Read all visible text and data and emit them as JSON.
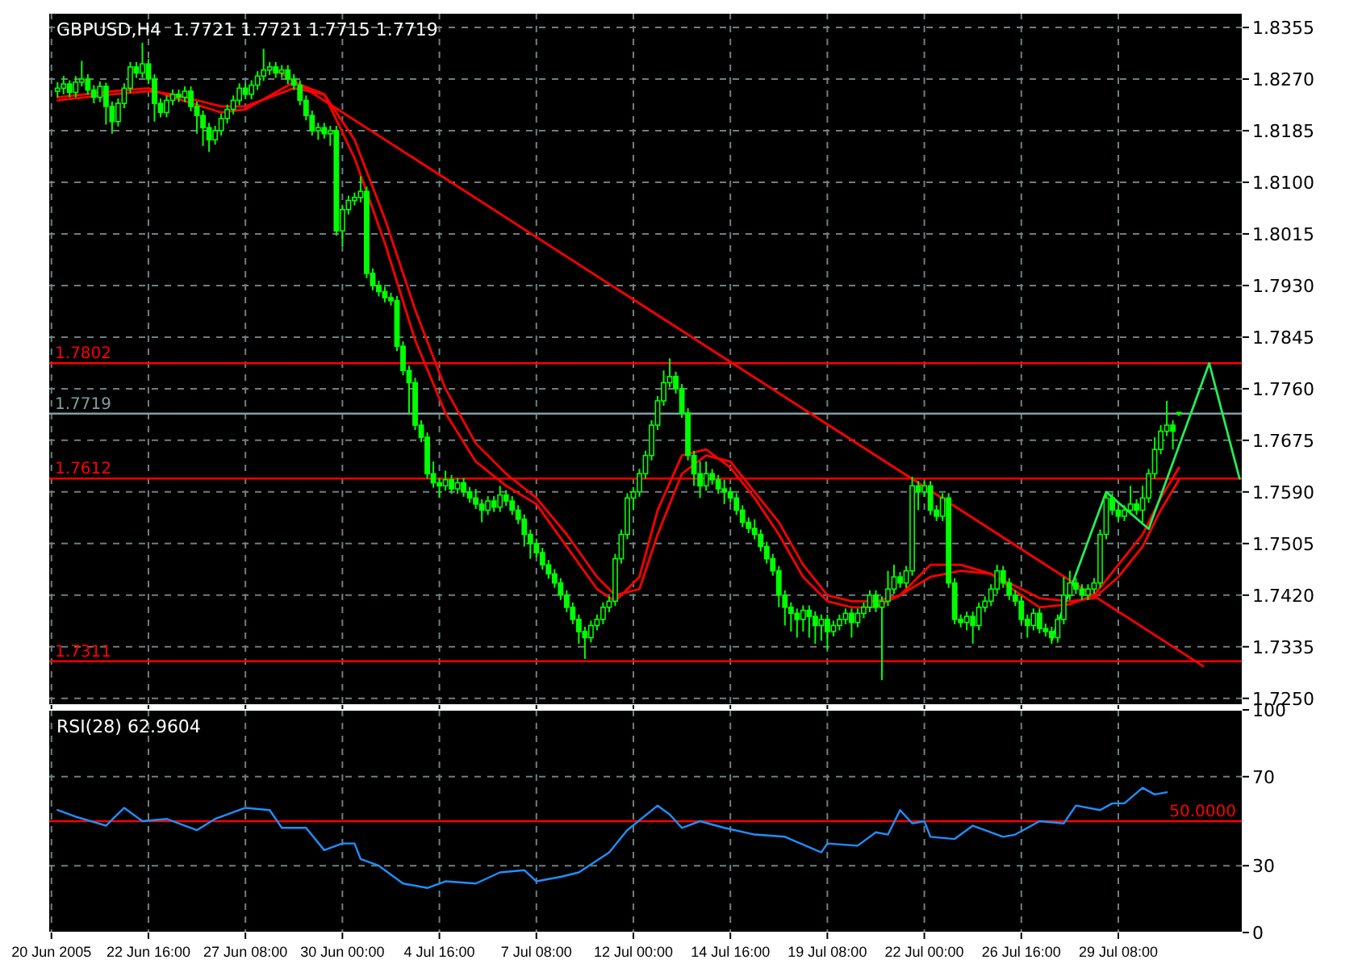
{
  "chart_data": [
    {
      "type": "candlestick",
      "title": "GBPUSD,H4  1.7721 1.7721 1.7715 1.7719",
      "color": "#00ff00",
      "ohlc": [
        null,
        [
          1.825,
          1.8265,
          1.824,
          1.8255
        ],
        [
          1.8255,
          1.8275,
          1.8245,
          1.8262
        ],
        [
          1.8262,
          1.8268,
          1.824,
          1.8248
        ],
        [
          1.8248,
          1.8275,
          1.824,
          1.8265
        ],
        [
          1.8265,
          1.83,
          1.8258,
          1.827
        ],
        [
          1.827,
          1.8278,
          1.8244,
          1.8252
        ],
        [
          1.8252,
          1.826,
          1.823,
          1.824
        ],
        [
          1.824,
          1.8266,
          1.8232,
          1.8258
        ],
        [
          1.8258,
          1.8264,
          1.8195,
          1.8225
        ],
        [
          1.8225,
          1.8233,
          1.818,
          1.82
        ],
        [
          1.82,
          1.8238,
          1.8192,
          1.823
        ],
        [
          1.823,
          1.8263,
          1.8222,
          1.8255
        ],
        [
          1.8255,
          1.8298,
          1.8247,
          1.829
        ],
        [
          1.829,
          1.8298,
          1.8272,
          1.828
        ],
        [
          1.828,
          1.833,
          1.8272,
          1.8295
        ],
        [
          1.8295,
          1.8303,
          1.8262,
          1.827
        ],
        [
          1.827,
          1.8278,
          1.82,
          1.823
        ],
        [
          1.823,
          1.8238,
          1.8207,
          1.8215
        ],
        [
          1.8215,
          1.8243,
          1.8207,
          1.8235
        ],
        [
          1.8235,
          1.8253,
          1.8227,
          1.8245
        ],
        [
          1.8245,
          1.8253,
          1.8232,
          1.824
        ],
        [
          1.824,
          1.8258,
          1.8232,
          1.825
        ],
        [
          1.825,
          1.8258,
          1.8217,
          1.8225
        ],
        [
          1.8225,
          1.8233,
          1.818,
          1.821
        ],
        [
          1.821,
          1.8218,
          1.816,
          1.819
        ],
        [
          1.819,
          1.8198,
          1.815,
          1.817
        ],
        [
          1.817,
          1.8193,
          1.8162,
          1.8185
        ],
        [
          1.8185,
          1.8213,
          1.8177,
          1.8205
        ],
        [
          1.8205,
          1.8228,
          1.8197,
          1.822
        ],
        [
          1.822,
          1.8243,
          1.8212,
          1.8235
        ],
        [
          1.8235,
          1.8263,
          1.8227,
          1.8255
        ],
        [
          1.8255,
          1.8263,
          1.8237,
          1.8245
        ],
        [
          1.8245,
          1.8268,
          1.8237,
          1.826
        ],
        [
          1.826,
          1.8283,
          1.8252,
          1.8275
        ],
        [
          1.8275,
          1.832,
          1.8267,
          1.8285
        ],
        [
          1.8285,
          1.8298,
          1.8277,
          1.829
        ],
        [
          1.829,
          1.8298,
          1.8272,
          1.828
        ],
        [
          1.828,
          1.8293,
          1.8272,
          1.8285
        ],
        [
          1.8285,
          1.8293,
          1.8262,
          1.827
        ],
        [
          1.827,
          1.8278,
          1.8252,
          1.826
        ],
        [
          1.826,
          1.8268,
          1.8227,
          1.8235
        ],
        [
          1.8235,
          1.8243,
          1.8202,
          1.821
        ],
        [
          1.821,
          1.8218,
          1.8177,
          1.8185
        ],
        [
          1.8185,
          1.8198,
          1.817,
          1.819
        ],
        [
          1.819,
          1.8198,
          1.8172,
          1.818
        ],
        [
          1.818,
          1.8193,
          1.816,
          1.8185
        ],
        [
          1.8185,
          1.8193,
          1.8012,
          1.802
        ],
        [
          1.802,
          1.8063,
          1.7995,
          1.8055
        ],
        [
          1.8055,
          1.8078,
          1.8047,
          1.807
        ],
        [
          1.807,
          1.8083,
          1.8062,
          1.8075
        ],
        [
          1.8075,
          1.811,
          1.8067,
          1.8085
        ],
        [
          1.8085,
          1.8093,
          1.7942,
          1.795
        ],
        [
          1.795,
          1.7958,
          1.7922,
          1.793
        ],
        [
          1.793,
          1.7938,
          1.7912,
          1.792
        ],
        [
          1.792,
          1.7928,
          1.7902,
          1.791
        ],
        [
          1.791,
          1.7918,
          1.7897,
          1.7905
        ],
        [
          1.7905,
          1.7913,
          1.7822,
          1.783
        ],
        [
          1.783,
          1.7838,
          1.7782,
          1.779
        ],
        [
          1.779,
          1.7798,
          1.772,
          1.777
        ],
        [
          1.777,
          1.7778,
          1.7692,
          1.77
        ],
        [
          1.77,
          1.7708,
          1.7672,
          1.768
        ],
        [
          1.768,
          1.7688,
          1.7612,
          1.762
        ],
        [
          1.762,
          1.764,
          1.7597,
          1.7605
        ],
        [
          1.7605,
          1.7613,
          1.758,
          1.76
        ],
        [
          1.76,
          1.7625,
          1.7592,
          1.761
        ],
        [
          1.761,
          1.7618,
          1.7587,
          1.7595
        ],
        [
          1.7595,
          1.7613,
          1.7587,
          1.7605
        ],
        [
          1.7605,
          1.7613,
          1.7582,
          1.759
        ],
        [
          1.759,
          1.7598,
          1.7572,
          1.758
        ],
        [
          1.758,
          1.7595,
          1.7562,
          1.757
        ],
        [
          1.757,
          1.7578,
          1.754,
          1.756
        ],
        [
          1.756,
          1.7583,
          1.7552,
          1.7575
        ],
        [
          1.7575,
          1.7583,
          1.7557,
          1.7565
        ],
        [
          1.7565,
          1.76,
          1.7557,
          1.7585
        ],
        [
          1.7585,
          1.7593,
          1.7567,
          1.7575
        ],
        [
          1.7575,
          1.7583,
          1.7552,
          1.756
        ],
        [
          1.756,
          1.7568,
          1.7537,
          1.7545
        ],
        [
          1.7545,
          1.7553,
          1.75,
          1.752
        ],
        [
          1.752,
          1.7528,
          1.748,
          1.7505
        ],
        [
          1.7505,
          1.7513,
          1.7482,
          1.749
        ],
        [
          1.749,
          1.7498,
          1.7462,
          1.747
        ],
        [
          1.747,
          1.7478,
          1.7447,
          1.7455
        ],
        [
          1.7455,
          1.7463,
          1.7432,
          1.744
        ],
        [
          1.744,
          1.7448,
          1.7412,
          1.742
        ],
        [
          1.742,
          1.7428,
          1.7392,
          1.74
        ],
        [
          1.74,
          1.7408,
          1.7372,
          1.738
        ],
        [
          1.738,
          1.7388,
          1.734,
          1.736
        ],
        [
          1.736,
          1.7368,
          1.7315,
          1.735
        ],
        [
          1.735,
          1.7378,
          1.7342,
          1.737
        ],
        [
          1.737,
          1.7388,
          1.7362,
          1.738
        ],
        [
          1.738,
          1.7408,
          1.7372,
          1.74
        ],
        [
          1.74,
          1.7418,
          1.7392,
          1.741
        ],
        [
          1.741,
          1.7488,
          1.7402,
          1.748
        ],
        [
          1.748,
          1.7528,
          1.7472,
          1.752
        ],
        [
          1.752,
          1.7588,
          1.7512,
          1.758
        ],
        [
          1.758,
          1.7598,
          1.756,
          1.759
        ],
        [
          1.759,
          1.7628,
          1.7582,
          1.762
        ],
        [
          1.762,
          1.7658,
          1.7612,
          1.765
        ],
        [
          1.765,
          1.7708,
          1.7642,
          1.77
        ],
        [
          1.77,
          1.7748,
          1.7692,
          1.774
        ],
        [
          1.774,
          1.779,
          1.7732,
          1.777
        ],
        [
          1.777,
          1.781,
          1.7762,
          1.778
        ],
        [
          1.778,
          1.7788,
          1.7752,
          1.776
        ],
        [
          1.776,
          1.7768,
          1.7712,
          1.772
        ],
        [
          1.772,
          1.7728,
          1.7642,
          1.765
        ],
        [
          1.765,
          1.7658,
          1.76,
          1.762
        ],
        [
          1.762,
          1.764,
          1.758,
          1.76
        ],
        [
          1.76,
          1.764,
          1.7592,
          1.762
        ],
        [
          1.762,
          1.7628,
          1.7602,
          1.761
        ],
        [
          1.761,
          1.7618,
          1.7587,
          1.7595
        ],
        [
          1.7595,
          1.761,
          1.757,
          1.759
        ],
        [
          1.759,
          1.7598,
          1.7572,
          1.758
        ],
        [
          1.758,
          1.7588,
          1.7552,
          1.756
        ],
        [
          1.756,
          1.7568,
          1.7532,
          1.754
        ],
        [
          1.754,
          1.7548,
          1.7522,
          1.753
        ],
        [
          1.753,
          1.7545,
          1.7512,
          1.752
        ],
        [
          1.752,
          1.7528,
          1.7492,
          1.75
        ],
        [
          1.75,
          1.7508,
          1.7472,
          1.748
        ],
        [
          1.748,
          1.7488,
          1.7452,
          1.746
        ],
        [
          1.746,
          1.7468,
          1.74,
          1.742
        ],
        [
          1.742,
          1.7428,
          1.737,
          1.74
        ],
        [
          1.74,
          1.7408,
          1.736,
          1.739
        ],
        [
          1.739,
          1.7398,
          1.735,
          1.738
        ],
        [
          1.738,
          1.7403,
          1.736,
          1.7395
        ],
        [
          1.7395,
          1.7403,
          1.735,
          1.7385
        ],
        [
          1.7385,
          1.7393,
          1.734,
          1.737
        ],
        [
          1.737,
          1.7388,
          1.7345,
          1.738
        ],
        [
          1.738,
          1.7388,
          1.733,
          1.736
        ],
        [
          1.736,
          1.7378,
          1.7352,
          1.737
        ],
        [
          1.737,
          1.7388,
          1.7362,
          1.738
        ],
        [
          1.738,
          1.7398,
          1.7372,
          1.739
        ],
        [
          1.739,
          1.7398,
          1.735,
          1.7375
        ],
        [
          1.7375,
          1.7398,
          1.7367,
          1.739
        ],
        [
          1.739,
          1.7408,
          1.7382,
          1.74
        ],
        [
          1.74,
          1.7428,
          1.7392,
          1.742
        ],
        [
          1.742,
          1.7428,
          1.7392,
          1.74
        ],
        [
          1.74,
          1.7418,
          1.728,
          1.741
        ],
        [
          1.741,
          1.746,
          1.7402,
          1.743
        ],
        [
          1.743,
          1.747,
          1.7422,
          1.745
        ],
        [
          1.745,
          1.7458,
          1.7432,
          1.744
        ],
        [
          1.744,
          1.7468,
          1.7432,
          1.746
        ],
        [
          1.746,
          1.7615,
          1.7452,
          1.76
        ],
        [
          1.76,
          1.7608,
          1.756,
          1.759
        ],
        [
          1.759,
          1.7608,
          1.7582,
          1.76
        ],
        [
          1.76,
          1.7608,
          1.7552,
          1.756
        ],
        [
          1.756,
          1.7568,
          1.7542,
          1.755
        ],
        [
          1.755,
          1.7588,
          1.7542,
          1.758
        ],
        [
          1.758,
          1.7588,
          1.7432,
          1.744
        ],
        [
          1.744,
          1.7448,
          1.7372,
          1.738
        ],
        [
          1.738,
          1.7388,
          1.7367,
          1.7375
        ],
        [
          1.7375,
          1.7393,
          1.7362,
          1.7385
        ],
        [
          1.7385,
          1.7393,
          1.734,
          1.737
        ],
        [
          1.737,
          1.7408,
          1.7362,
          1.74
        ],
        [
          1.74,
          1.7418,
          1.7392,
          1.741
        ],
        [
          1.741,
          1.7438,
          1.7402,
          1.743
        ],
        [
          1.743,
          1.747,
          1.7422,
          1.746
        ],
        [
          1.746,
          1.7468,
          1.7432,
          1.744
        ],
        [
          1.744,
          1.7448,
          1.7412,
          1.742
        ],
        [
          1.742,
          1.7428,
          1.7402,
          1.741
        ],
        [
          1.741,
          1.7418,
          1.7372,
          1.738
        ],
        [
          1.738,
          1.7388,
          1.735,
          1.737
        ],
        [
          1.737,
          1.7398,
          1.7362,
          1.739
        ],
        [
          1.739,
          1.7398,
          1.7357,
          1.7365
        ],
        [
          1.7365,
          1.7373,
          1.7352,
          1.736
        ],
        [
          1.736,
          1.7368,
          1.734,
          1.735
        ],
        [
          1.735,
          1.7388,
          1.7342,
          1.738
        ],
        [
          1.738,
          1.745,
          1.7372,
          1.742
        ],
        [
          1.742,
          1.746,
          1.7412,
          1.744
        ],
        [
          1.744,
          1.7448,
          1.7422,
          1.743
        ],
        [
          1.743,
          1.7438,
          1.7412,
          1.742
        ],
        [
          1.742,
          1.7438,
          1.7412,
          1.743
        ],
        [
          1.743,
          1.7448,
          1.7422,
          1.744
        ],
        [
          1.744,
          1.7528,
          1.7432,
          1.752
        ],
        [
          1.752,
          1.7588,
          1.7512,
          1.758
        ],
        [
          1.758,
          1.7588,
          1.7552,
          1.756
        ],
        [
          1.756,
          1.7568,
          1.7542,
          1.755
        ],
        [
          1.755,
          1.7568,
          1.7542,
          1.756
        ],
        [
          1.756,
          1.76,
          1.7552,
          1.757
        ],
        [
          1.757,
          1.7578,
          1.7552,
          1.756
        ],
        [
          1.756,
          1.76,
          1.754,
          1.758
        ],
        [
          1.758,
          1.7628,
          1.7572,
          1.762
        ],
        [
          1.762,
          1.768,
          1.7612,
          1.766
        ],
        [
          1.766,
          1.77,
          1.7652,
          1.769
        ],
        [
          1.769,
          1.774,
          1.7682,
          1.77
        ],
        [
          1.77,
          1.7708,
          1.766,
          1.769
        ],
        [
          1.7721,
          1.7721,
          1.7715,
          1.7719
        ],
        null,
        null,
        null,
        null,
        null,
        null,
        null,
        null,
        null,
        null
      ],
      "series": [
        {
          "type": "line",
          "color": "#ff0000",
          "values": [
            null,
            1.824,
            null,
            null,
            null,
            null,
            null,
            null,
            null,
            null,
            1.825,
            null,
            null,
            null,
            null,
            null,
            1.8255,
            null,
            null,
            null,
            1.824,
            null,
            null,
            null,
            null,
            null,
            null,
            null,
            1.8215,
            null,
            null,
            null,
            1.822,
            null,
            null,
            null,
            null,
            null,
            null,
            null,
            1.8265,
            null,
            null,
            null,
            null,
            1.8245,
            null,
            null,
            null,
            null,
            1.814,
            null,
            null,
            null,
            null,
            1.8,
            null,
            null,
            null,
            null,
            1.784,
            null,
            null,
            null,
            null,
            1.772,
            null,
            null,
            null,
            null,
            1.764,
            null,
            null,
            null,
            null,
            1.76,
            null,
            null,
            null,
            null,
            1.757,
            null,
            null,
            null,
            null,
            1.75,
            null,
            null,
            null,
            null,
            1.743,
            null,
            null,
            1.741,
            null,
            null,
            null,
            1.745,
            null,
            null,
            1.756,
            null,
            null,
            null,
            1.765,
            null,
            null,
            null,
            1.766,
            null,
            null,
            null,
            1.763,
            null,
            null,
            null,
            1.758,
            null,
            null,
            null,
            1.752,
            null,
            null,
            null,
            1.745,
            null,
            null,
            null,
            1.741,
            null,
            null,
            null,
            1.74,
            null,
            null,
            null,
            1.74,
            null,
            null,
            null,
            1.742,
            null,
            null,
            null,
            null,
            1.747,
            null,
            null,
            null,
            null,
            1.747,
            null,
            null,
            null,
            null,
            1.7455,
            null,
            null,
            null,
            null,
            1.742,
            null,
            null,
            1.74,
            null,
            null,
            null,
            null,
            1.7405,
            null,
            null,
            null,
            1.742,
            null,
            null,
            null,
            1.747,
            null,
            null,
            null,
            1.752,
            null,
            null,
            1.758,
            null,
            null,
            1.763,
            null,
            null,
            null,
            null,
            null,
            null,
            null,
            null,
            null,
            null
          ]
        },
        {
          "type": "line",
          "color": "#ff0000",
          "values": [
            null,
            1.8235,
            null,
            null,
            null,
            null,
            null,
            null,
            null,
            null,
            1.8245,
            null,
            null,
            null,
            null,
            null,
            1.825,
            null,
            null,
            null,
            1.8245,
            null,
            null,
            null,
            null,
            null,
            null,
            null,
            1.8225,
            null,
            null,
            null,
            1.8225,
            null,
            null,
            null,
            null,
            null,
            null,
            null,
            1.8255,
            null,
            null,
            null,
            null,
            1.8245,
            null,
            null,
            null,
            null,
            1.817,
            null,
            null,
            null,
            null,
            1.804,
            null,
            null,
            null,
            null,
            1.789,
            null,
            null,
            null,
            null,
            1.776,
            null,
            null,
            null,
            null,
            1.767,
            null,
            null,
            null,
            null,
            1.762,
            null,
            null,
            null,
            null,
            1.758,
            null,
            null,
            null,
            null,
            1.752,
            null,
            null,
            null,
            null,
            1.745,
            null,
            null,
            1.742,
            null,
            null,
            null,
            1.743,
            null,
            null,
            1.752,
            null,
            null,
            null,
            1.762,
            null,
            null,
            null,
            1.765,
            null,
            null,
            null,
            1.764,
            null,
            null,
            null,
            1.759,
            null,
            null,
            null,
            1.754,
            null,
            null,
            null,
            1.747,
            null,
            null,
            null,
            1.742,
            null,
            null,
            null,
            1.741,
            null,
            null,
            null,
            1.741,
            null,
            null,
            null,
            1.742,
            null,
            null,
            null,
            null,
            1.745,
            null,
            null,
            null,
            null,
            1.746,
            null,
            null,
            null,
            null,
            1.7455,
            null,
            null,
            null,
            null,
            1.743,
            null,
            null,
            1.7415,
            null,
            null,
            null,
            null,
            1.741,
            null,
            null,
            null,
            1.7415,
            null,
            null,
            null,
            1.745,
            null,
            null,
            null,
            1.75,
            null,
            null,
            1.756,
            null,
            null,
            1.761,
            null,
            null,
            null,
            null,
            null,
            null,
            null,
            null,
            null,
            null
          ]
        },
        {
          "type": "line",
          "color": "#ff0000",
          "values": [
            null,
            null,
            null,
            null,
            null,
            null,
            null,
            null,
            null,
            null,
            null,
            null,
            null,
            null,
            null,
            null,
            null,
            null,
            null,
            null,
            null,
            null,
            null,
            null,
            null,
            null,
            null,
            null,
            null,
            null,
            null,
            null,
            null,
            null,
            null,
            null,
            null,
            1.8286,
            null,
            null,
            null,
            null,
            null,
            null,
            null,
            null,
            null,
            null,
            null,
            null,
            null,
            null,
            null,
            null,
            null,
            null,
            null,
            null,
            null,
            null,
            null,
            null,
            null,
            null,
            null,
            null,
            null,
            null,
            null,
            null,
            null,
            null,
            null,
            null,
            null,
            null,
            null,
            null,
            null,
            null,
            null,
            null,
            null,
            null,
            null,
            null,
            null,
            null,
            null,
            null,
            null,
            null,
            null,
            null,
            null,
            null,
            null,
            null,
            null,
            null,
            null,
            null,
            null,
            null,
            null,
            null,
            null,
            null,
            null,
            null,
            null,
            null,
            null,
            null,
            null,
            null,
            null,
            null,
            null,
            null,
            null,
            null,
            null,
            null,
            null,
            null,
            null,
            null,
            null,
            null,
            null,
            null,
            null,
            null,
            null,
            null,
            null,
            null,
            null,
            null,
            null,
            null,
            null,
            null,
            null,
            null,
            null,
            null,
            null,
            null,
            null,
            null,
            null,
            null,
            null,
            null,
            null,
            null,
            null,
            null,
            null,
            null,
            null,
            null,
            null,
            null,
            null,
            null,
            null,
            null,
            null,
            null,
            null,
            null,
            null,
            null,
            null,
            null,
            null,
            null,
            null,
            null,
            null,
            null,
            null,
            null,
            null,
            null,
            null,
            null,
            1.7303,
            null,
            null,
            null,
            null,
            null,
            null
          ]
        },
        {
          "type": "line",
          "color": "#22ee55",
          "values": [
            null,
            null,
            null,
            null,
            null,
            null,
            null,
            null,
            null,
            null,
            null,
            null,
            null,
            null,
            null,
            null,
            null,
            null,
            null,
            null,
            null,
            null,
            null,
            null,
            null,
            null,
            null,
            null,
            null,
            null,
            null,
            null,
            null,
            null,
            null,
            null,
            null,
            null,
            null,
            null,
            null,
            null,
            null,
            null,
            null,
            null,
            null,
            null,
            null,
            null,
            null,
            null,
            null,
            null,
            null,
            null,
            null,
            null,
            null,
            null,
            null,
            null,
            null,
            null,
            null,
            null,
            null,
            null,
            null,
            null,
            null,
            null,
            null,
            null,
            null,
            null,
            null,
            null,
            null,
            null,
            null,
            null,
            null,
            null,
            null,
            null,
            null,
            null,
            null,
            null,
            null,
            null,
            null,
            null,
            null,
            null,
            null,
            null,
            null,
            null,
            null,
            null,
            null,
            null,
            null,
            null,
            null,
            null,
            null,
            null,
            null,
            null,
            null,
            null,
            null,
            null,
            null,
            null,
            null,
            null,
            null,
            null,
            null,
            null,
            null,
            null,
            null,
            null,
            null,
            null,
            null,
            null,
            null,
            null,
            null,
            null,
            null,
            null,
            null,
            null,
            null,
            null,
            null,
            null,
            null,
            null,
            null,
            null,
            null,
            null,
            null,
            null,
            null,
            null,
            null,
            null,
            null,
            null,
            null,
            null,
            null,
            null,
            null,
            null,
            null,
            1.7346,
            null,
            null,
            null,
            null,
            null,
            null,
            null,
            null,
            1.759,
            null,
            null,
            null,
            null,
            null,
            null,
            1.7529,
            null,
            null,
            null,
            null,
            null,
            null,
            null,
            null,
            null,
            1.7802,
            null,
            null,
            null,
            null,
            1.7612
          ]
        }
      ],
      "ref_lines": [
        {
          "axis": "y",
          "value": 1.7802,
          "label": "1.7802",
          "color": "#ff0000"
        },
        {
          "axis": "y",
          "value": 1.7612,
          "label": "1.7612",
          "color": "#ff0000"
        },
        {
          "axis": "y",
          "value": 1.7311,
          "label": "1.7311",
          "color": "#ff0000"
        },
        {
          "axis": "y",
          "value": 1.7719,
          "label": "1.7719",
          "color": "#7f9f9f"
        }
      ],
      "ylim": [
        1.7239,
        1.8379
      ],
      "yticks": [
        {
          "value": 1.725,
          "label": "1.7250"
        },
        {
          "value": 1.7335,
          "label": "1.7335"
        },
        {
          "value": 1.742,
          "label": "1.7420"
        },
        {
          "value": 1.7505,
          "label": "1.7505"
        },
        {
          "value": 1.759,
          "label": "1.7590"
        },
        {
          "value": 1.7675,
          "label": "1.7675"
        },
        {
          "value": 1.776,
          "label": "1.7760"
        },
        {
          "value": 1.7845,
          "label": "1.7845"
        },
        {
          "value": 1.793,
          "label": "1.7930"
        },
        {
          "value": 1.8015,
          "label": "1.8015"
        },
        {
          "value": 1.81,
          "label": "1.8100"
        },
        {
          "value": 1.8185,
          "label": "1.8185"
        },
        {
          "value": 1.827,
          "label": "1.8270"
        },
        {
          "value": 1.8355,
          "label": "1.8355"
        }
      ],
      "grid": true
    },
    {
      "type": "line",
      "title": "RSI(28) 62.9604",
      "color": "#1e90ff",
      "categories": [
        "20 Jun 2005",
        null,
        null,
        null,
        null,
        null,
        null,
        null,
        null,
        null,
        null,
        null,
        null,
        null,
        null,
        null,
        "22 Jun 16:00",
        null,
        null,
        null,
        null,
        null,
        null,
        null,
        null,
        null,
        null,
        null,
        null,
        null,
        null,
        null,
        "27 Jun 08:00",
        null,
        null,
        null,
        null,
        null,
        null,
        null,
        null,
        null,
        null,
        null,
        null,
        null,
        null,
        null,
        "30 Jun 00:00",
        null,
        null,
        null,
        null,
        null,
        null,
        null,
        null,
        null,
        null,
        null,
        null,
        null,
        null,
        null,
        "4 Jul 16:00",
        null,
        null,
        null,
        null,
        null,
        null,
        null,
        null,
        null,
        null,
        null,
        null,
        null,
        null,
        null,
        "7 Jul 08:00",
        null,
        null,
        null,
        null,
        null,
        null,
        null,
        null,
        null,
        null,
        null,
        null,
        null,
        null,
        null,
        "12 Jul 00:00",
        null,
        null,
        null,
        null,
        null,
        null,
        null,
        null,
        null,
        null,
        null,
        null,
        null,
        null,
        null,
        "14 Jul 16:00",
        null,
        null,
        null,
        null,
        null,
        null,
        null,
        null,
        null,
        null,
        null,
        null,
        null,
        null,
        null,
        "19 Jul 08:00",
        null,
        null,
        null,
        null,
        null,
        null,
        null,
        null,
        null,
        null,
        null,
        null,
        null,
        null,
        null,
        "22 Jul 00:00",
        null,
        null,
        null,
        null,
        null,
        null,
        null,
        null,
        null,
        null,
        null,
        null,
        null,
        null,
        null,
        "26 Jul 16:00",
        null,
        null,
        null,
        null,
        null,
        null,
        null,
        null,
        null,
        null,
        null,
        null,
        null,
        null,
        null,
        "29 Jul 08:00",
        null,
        null,
        null,
        null,
        null,
        null,
        null,
        null,
        null,
        null,
        null,
        null,
        null,
        null,
        null,
        null,
        null,
        null,
        null,
        null
      ],
      "values": [
        null,
        55,
        null,
        null,
        52,
        null,
        null,
        null,
        null,
        48,
        null,
        null,
        56,
        null,
        null,
        50,
        null,
        null,
        null,
        51,
        null,
        null,
        null,
        null,
        46,
        null,
        null,
        51,
        null,
        null,
        null,
        null,
        56,
        null,
        null,
        null,
        55,
        null,
        47,
        null,
        null,
        null,
        47,
        null,
        null,
        37,
        null,
        null,
        40,
        null,
        40,
        33,
        null,
        null,
        30,
        null,
        null,
        null,
        22,
        null,
        null,
        null,
        20,
        null,
        null,
        23,
        null,
        null,
        null,
        null,
        22,
        null,
        null,
        null,
        27,
        null,
        null,
        null,
        28,
        null,
        23,
        null,
        null,
        null,
        25,
        null,
        null,
        27,
        null,
        null,
        null,
        null,
        36,
        null,
        null,
        46,
        null,
        null,
        null,
        null,
        57,
        null,
        53,
        null,
        47,
        null,
        null,
        50,
        null,
        null,
        null,
        47,
        null,
        null,
        null,
        null,
        44,
        null,
        null,
        null,
        null,
        43,
        null,
        null,
        null,
        null,
        null,
        36,
        40,
        null,
        null,
        null,
        null,
        39,
        null,
        null,
        45,
        null,
        44,
        null,
        55,
        null,
        49,
        null,
        50,
        43,
        null,
        null,
        null,
        42,
        null,
        null,
        48,
        null,
        null,
        null,
        null,
        43,
        null,
        44,
        null,
        null,
        null,
        50,
        null,
        null,
        null,
        49,
        null,
        57,
        null,
        null,
        null,
        55,
        null,
        58,
        null,
        58,
        null,
        null,
        65,
        null,
        62,
        null,
        63,
        null,
        null,
        null,
        null,
        null,
        null,
        null,
        null,
        null,
        null,
        null,
        null
      ],
      "ref_lines": [
        {
          "axis": "y",
          "value": 50,
          "label": "50.0000",
          "color": "#ff0000"
        }
      ],
      "ylim": [
        0,
        100
      ],
      "yticks": [
        0,
        30,
        70,
        100
      ],
      "grid": true
    }
  ]
}
